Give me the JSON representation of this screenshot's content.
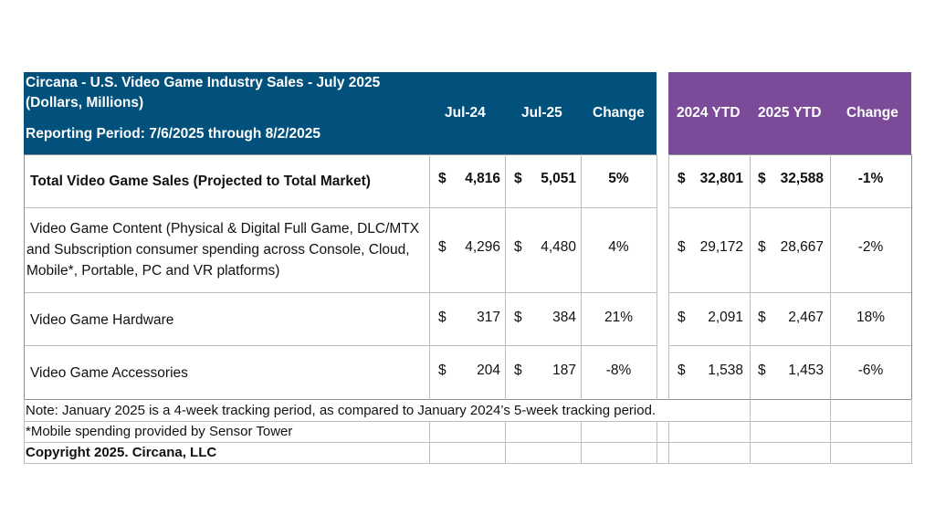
{
  "header": {
    "title_line1": "Circana - U.S. Video Game Industry Sales - July 2025",
    "title_line2": "(Dollars, Millions)",
    "reporting_period": "Reporting Period: 7/6/2025 through 8/2/2025",
    "col_jul24": "Jul-24",
    "col_jul25": "Jul-25",
    "col_change_month": "Change",
    "col_ytd2024": "2024 YTD",
    "col_ytd2025": "2025 YTD",
    "col_change_ytd": "Change",
    "colors": {
      "blue": "#02507c",
      "purple": "#7b4b9a"
    }
  },
  "currency_symbol": "$",
  "rows": [
    {
      "label": "Total Video Game Sales (Projected to Total Market)",
      "jul24": "4,816",
      "jul25": "5,051",
      "change": "5%",
      "ytd2024": "32,801",
      "ytd2025": "32,588",
      "change_ytd": "-1%"
    },
    {
      "label_line1": "Video Game Content (Physical & Digital Full Game, DLC/MTX",
      "label_line2": "and Subscription consumer spending across Console, Cloud,",
      "label_line3": "Mobile*, Portable, PC and VR platforms)",
      "jul24": "4,296",
      "jul25": "4,480",
      "change": "4%",
      "ytd2024": "29,172",
      "ytd2025": "28,667",
      "change_ytd": "-2%"
    },
    {
      "label": "Video Game Hardware",
      "jul24": "317",
      "jul25": "384",
      "change": "21%",
      "ytd2024": "2,091",
      "ytd2025": "2,467",
      "change_ytd": "18%"
    },
    {
      "label": "Video Game Accessories",
      "jul24": "204",
      "jul25": "187",
      "change": "-8%",
      "ytd2024": "1,538",
      "ytd2025": "1,453",
      "change_ytd": "-6%"
    }
  ],
  "notes": {
    "note1": "Note: January 2025 is a 4-week tracking period, as compared to January 2024’s 5-week tracking period.",
    "note2": "*Mobile spending provided by Sensor Tower",
    "copyright": "Copyright 2025. Circana, LLC"
  }
}
